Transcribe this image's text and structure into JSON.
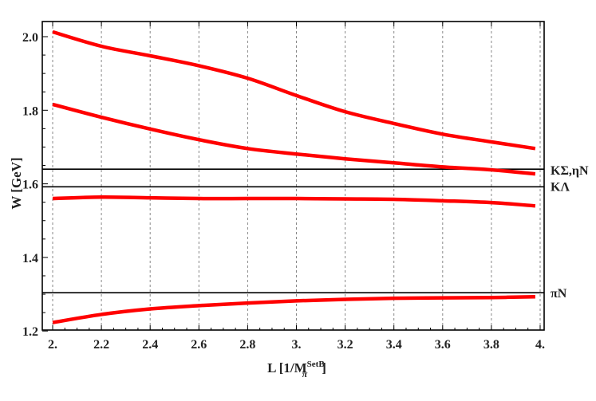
{
  "chart_data": {
    "type": "line",
    "xlabel": "L [1/M",
    "xlabel_sub": "π",
    "xlabel_sup": "SetB",
    "xlabel_close": "]",
    "ylabel": "W [GeV]",
    "xlim": [
      1.96,
      4.02
    ],
    "ylim": [
      1.2,
      2.03
    ],
    "xticks": [
      2.0,
      2.2,
      2.4,
      2.6,
      2.8,
      3.0,
      3.2,
      3.4,
      3.6,
      3.8,
      4.0
    ],
    "xtick_labels": [
      "2.",
      "2.2",
      "2.4",
      "2.6",
      "2.8",
      "3.",
      "3.2",
      "3.4",
      "3.6",
      "3.8",
      "4."
    ],
    "yticks": [
      1.2,
      1.4,
      1.6,
      1.8,
      2.0
    ],
    "ytick_labels": [
      "1.2",
      "1.4",
      "1.6",
      "1.8",
      "2.0"
    ],
    "grid": "vertical dashed at x ticks",
    "line_color": "#ff0000",
    "thresholds": [
      {
        "label": "KΣ,ηN",
        "value": 1.64
      },
      {
        "label": "KΛ",
        "value": 1.592
      },
      {
        "label": "πN",
        "value": 1.304
      }
    ],
    "series": [
      {
        "x": [
          2.0,
          2.2,
          2.4,
          2.6,
          2.8,
          3.0,
          3.2,
          3.4,
          3.6,
          3.8,
          3.98
        ],
        "y": [
          2.013,
          1.974,
          1.948,
          1.921,
          1.887,
          1.84,
          1.796,
          1.764,
          1.735,
          1.714,
          1.696
        ]
      },
      {
        "x": [
          2.0,
          2.2,
          2.4,
          2.6,
          2.8,
          3.0,
          3.2,
          3.4,
          3.6,
          3.8,
          3.98
        ],
        "y": [
          1.816,
          1.781,
          1.749,
          1.72,
          1.696,
          1.681,
          1.668,
          1.657,
          1.646,
          1.638,
          1.627
        ]
      },
      {
        "x": [
          2.0,
          2.2,
          2.4,
          2.6,
          2.8,
          3.0,
          3.2,
          3.4,
          3.6,
          3.8,
          3.98
        ],
        "y": [
          1.56,
          1.564,
          1.562,
          1.56,
          1.56,
          1.56,
          1.559,
          1.558,
          1.554,
          1.549,
          1.54
        ]
      },
      {
        "x": [
          2.0,
          2.2,
          2.4,
          2.6,
          2.8,
          3.0,
          3.2,
          3.4,
          3.6,
          3.8,
          3.98
        ],
        "y": [
          1.223,
          1.245,
          1.26,
          1.269,
          1.276,
          1.282,
          1.286,
          1.289,
          1.29,
          1.291,
          1.293
        ]
      }
    ]
  }
}
